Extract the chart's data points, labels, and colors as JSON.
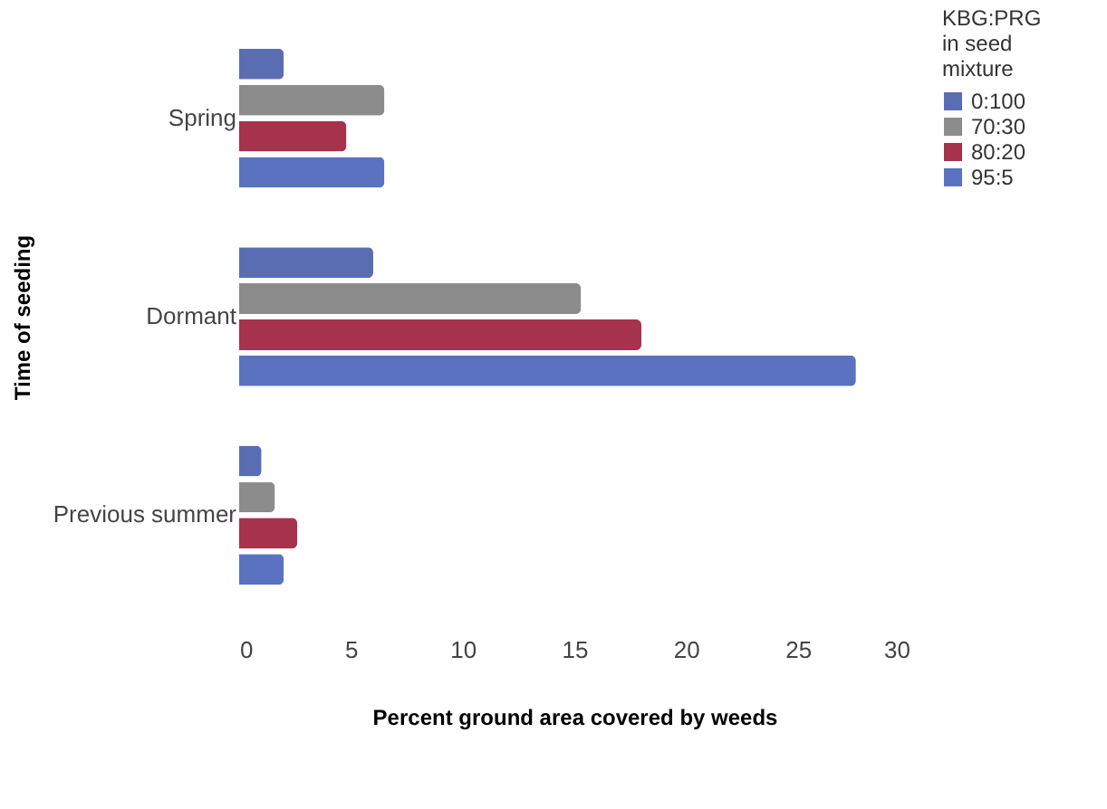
{
  "chart_data": {
    "type": "bar",
    "orientation": "horizontal",
    "xlabel": "Percent ground area covered by weeds",
    "ylabel": "Time of seeding",
    "legend_title": "KBG:PRG in seed mixture",
    "legend": "right",
    "categories": [
      "Spring",
      "Dormant",
      "Previous summer"
    ],
    "series": [
      {
        "name": "0:100",
        "color": "#5a6db3",
        "values": [
          2,
          6,
          1
        ]
      },
      {
        "name": "70:30",
        "color": "#8c8c8c",
        "values": [
          6.5,
          15.3,
          1.6
        ]
      },
      {
        "name": "80:20",
        "color": "#a6324e",
        "values": [
          4.8,
          18,
          2.6
        ]
      },
      {
        "name": "95:5",
        "color": "#5b72c0",
        "values": [
          6.5,
          27.6,
          2
        ]
      }
    ],
    "xlim": [
      0,
      30
    ],
    "xticks": [
      0,
      5,
      10,
      15,
      20,
      25,
      30
    ],
    "grid": false
  }
}
